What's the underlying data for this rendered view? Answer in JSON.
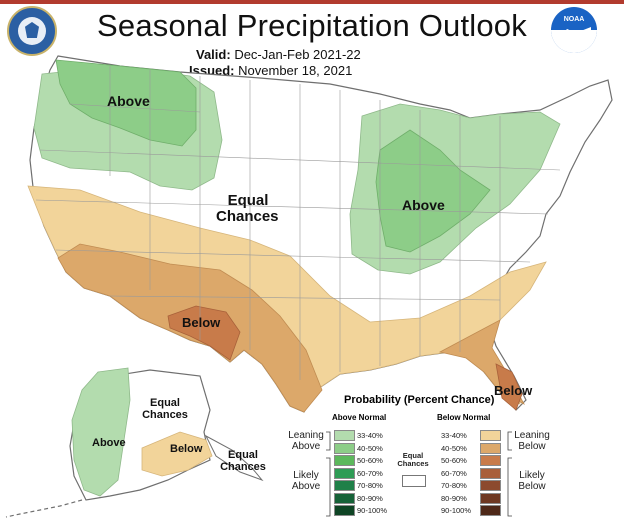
{
  "title": "Seasonal Precipitation Outlook",
  "valid_label": "Valid:",
  "valid_value": "Dec-Jan-Feb 2021-22",
  "issued_label": "Issued:",
  "issued_value": "November 18, 2021",
  "logos": {
    "left": "commerce-seal",
    "right_text": "NOAA"
  },
  "map_labels": {
    "above_nw": "Above",
    "equal_center_1": "Equal",
    "equal_center_2": "Chances",
    "above_east": "Above",
    "below_sw": "Below",
    "below_fl": "Below",
    "ak_equal_1": "Equal",
    "ak_equal_2": "Chances",
    "ak_above": "Above",
    "ak_below": "Below",
    "hi_equal_1": "Equal",
    "hi_equal_2": "Chances"
  },
  "legend": {
    "title": "Probability (Percent Chance)",
    "above_header": "Above Normal",
    "below_header": "Below Normal",
    "equal_label_1": "Equal",
    "equal_label_2": "Chances",
    "leaning_above_1": "Leaning",
    "leaning_above_2": "Above",
    "likely_above_1": "Likely",
    "likely_above_2": "Above",
    "leaning_below_1": "Leaning",
    "leaning_below_2": "Below",
    "likely_below_1": "Likely",
    "likely_below_2": "Below",
    "above_bins": [
      {
        "label": "33-40%",
        "color": "#b3dcae"
      },
      {
        "label": "40-50%",
        "color": "#8dcd88"
      },
      {
        "label": "50-60%",
        "color": "#5cb85c"
      },
      {
        "label": "60-70%",
        "color": "#2e9c55"
      },
      {
        "label": "70-80%",
        "color": "#1f8048"
      },
      {
        "label": "80-90%",
        "color": "#166238"
      },
      {
        "label": "90-100%",
        "color": "#0e4424"
      }
    ],
    "below_bins": [
      {
        "label": "33-40%",
        "color": "#f2d49a"
      },
      {
        "label": "40-50%",
        "color": "#dca86a"
      },
      {
        "label": "50-60%",
        "color": "#c87b4a"
      },
      {
        "label": "60-70%",
        "color": "#a95f3a"
      },
      {
        "label": "70-80%",
        "color": "#8c4a2e"
      },
      {
        "label": "80-90%",
        "color": "#6e3822"
      },
      {
        "label": "90-100%",
        "color": "#4e2818"
      }
    ]
  },
  "colors": {
    "above_33_40": "#b3dcae",
    "above_40_50": "#8dcd88",
    "below_33_40": "#f2d49a",
    "below_40_50": "#dca86a",
    "below_50_60": "#c87b4a"
  }
}
